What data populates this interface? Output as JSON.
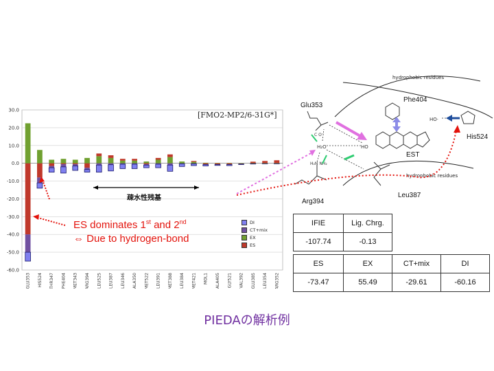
{
  "chart_data": {
    "type": "bar",
    "stacked": true,
    "categories": [
      "GLU353",
      "HIS524",
      "THR347",
      "PHE404",
      "MET343",
      "ARG394",
      "LEU525",
      "LEU387",
      "LEU346",
      "ALA350",
      "MET522",
      "LEU391",
      "MET388",
      "LEU384",
      "MET421",
      "MOL1",
      "ALA405",
      "GLY521",
      "VAL392",
      "GLU385",
      "LEU354",
      "ARG352"
    ],
    "series": [
      {
        "name": "DI",
        "color": "#8080f0",
        "values": [
          -5.0,
          -3.0,
          -2.5,
          -3.5,
          -2.5,
          -1.5,
          -4.0,
          -3.5,
          -2.5,
          -2.5,
          -1.5,
          -2.0,
          -3.5,
          -1.5,
          -1.0,
          -0.8,
          -0.5,
          -0.6,
          -0.3,
          -0.3,
          -0.2,
          -0.2
        ]
      },
      {
        "name": "CT+mix",
        "color": "#7050a0",
        "values": [
          -10.0,
          -3.0,
          -1.0,
          -1.5,
          -1.0,
          -1.0,
          -1.0,
          -0.8,
          -0.5,
          -0.5,
          -0.5,
          -0.5,
          -1.0,
          -0.3,
          -0.3,
          -0.2,
          -0.2,
          -0.2,
          -0.1,
          -0.1,
          -0.1,
          -0.1
        ]
      },
      {
        "name": "EX",
        "color": "#70a030",
        "values": [
          22.5,
          7.5,
          2.0,
          2.5,
          2.0,
          3.0,
          4.0,
          3.0,
          1.5,
          1.5,
          1.0,
          2.0,
          3.5,
          1.0,
          0.8,
          0.3,
          0.2,
          0.2,
          0.1,
          0.1,
          0.1,
          0.1
        ]
      },
      {
        "name": "ES",
        "color": "#c0392b",
        "values": [
          -40.0,
          -8.0,
          -1.5,
          -0.5,
          -0.5,
          -2.5,
          1.5,
          1.5,
          1.0,
          1.0,
          -0.5,
          1.0,
          1.5,
          0.0,
          0.5,
          -0.5,
          -0.5,
          -0.5,
          -0.3,
          0.8,
          1.2,
          1.6
        ]
      }
    ],
    "ylim": [
      -60,
      30
    ],
    "yticks": [
      "30.0",
      "20.0",
      "10.0",
      "0.0",
      "-10.0",
      "-20.0",
      "-30.0",
      "-40.0",
      "-50.0",
      "-60.0"
    ],
    "grid": true,
    "legend_position": "bottom-right"
  },
  "chart_annotation": {
    "method": "[FMO2-MP2/6-31G*]",
    "hydrophobic_label": "疎水性残基",
    "note_line1": "ES dominates 1",
    "note_sup1": "st",
    "note_mid": " and 2",
    "note_sup2": "nd",
    "note_line2": "⇔ Due to hydrogen-bond"
  },
  "diagram": {
    "hydrophobic_top": "hydrophobic residues",
    "hydrophobic_right": "hydrophobic residues",
    "glu": "Glu353",
    "phe": "Phe404",
    "his": "His524",
    "est": "EST",
    "arg": "Arg394",
    "leu": "Leu387",
    "ho_left": "HO",
    "ho_right": "HO·"
  },
  "table1": {
    "headers": [
      "IFIE",
      "Lig. Chrg."
    ],
    "values": [
      "-107.74",
      "-0.13"
    ]
  },
  "table2": {
    "headers": [
      "ES",
      "EX",
      "CT+mix",
      "DI"
    ],
    "values": [
      "-73.47",
      "55.49",
      "-29.61",
      "-60.16"
    ]
  },
  "caption": "PIEDAの解析例",
  "colors": {
    "caption": "#7030a0",
    "note": "#e3120b",
    "arrow_pink": "#e070e0",
    "arrow_blue": "#1f4e9c",
    "arrow_green": "#2ecc71"
  }
}
